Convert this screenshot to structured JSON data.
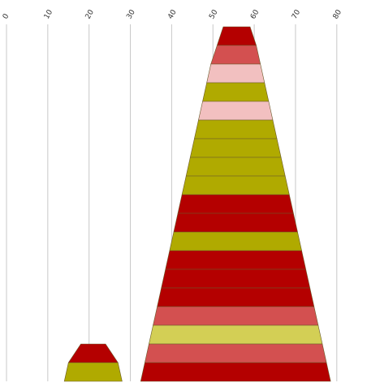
{
  "chart_data": {
    "type": "bar",
    "subtype": "stacked-trapezoid (funnel-like) bands",
    "x_axis": {
      "ticks": [
        0,
        10,
        20,
        30,
        40,
        50,
        60,
        70,
        80
      ],
      "range": [
        0,
        80
      ],
      "position": "top",
      "label_rotation": -60,
      "grid": true
    },
    "colors": {
      "dark_red": "#b40000",
      "red": "#d35050",
      "pink": "#f2c0c0",
      "olive": "#b0aa00",
      "light_olive": "#d3cf55"
    },
    "series": [
      {
        "bands": [
          {
            "x0": 52.5,
            "x1": 59.0,
            "color": "dark_red"
          },
          {
            "x0": 51.0,
            "x1": 60.5,
            "color": "red"
          },
          {
            "x0": 49.5,
            "x1": 61.5,
            "color": "pink"
          },
          {
            "x0": 48.5,
            "x1": 62.5,
            "color": "olive"
          },
          {
            "x0": 47.5,
            "x1": 63.5,
            "color": "pink"
          },
          {
            "x0": 46.5,
            "x1": 64.5,
            "color": "olive"
          },
          {
            "x0": 45.5,
            "x1": 65.5,
            "color": "olive"
          },
          {
            "x0": 44.5,
            "x1": 66.5,
            "color": "olive"
          },
          {
            "x0": 43.5,
            "x1": 67.5,
            "color": "olive"
          },
          {
            "x0": 42.5,
            "x1": 68.5,
            "color": "dark_red"
          },
          {
            "x0": 41.5,
            "x1": 69.5,
            "color": "dark_red"
          },
          {
            "x0": 40.5,
            "x1": 70.5,
            "color": "olive"
          },
          {
            "x0": 39.5,
            "x1": 71.5,
            "color": "dark_red"
          },
          {
            "x0": 38.5,
            "x1": 72.5,
            "color": "dark_red"
          },
          {
            "x0": 37.5,
            "x1": 73.5,
            "color": "dark_red"
          },
          {
            "x0": 36.5,
            "x1": 74.5,
            "color": "red"
          },
          {
            "x0": 35.5,
            "x1": 75.5,
            "color": "light_olive"
          },
          {
            "x0": 34.5,
            "x1": 76.5,
            "color": "red"
          },
          {
            "x0": 33.5,
            "x1": 77.5,
            "color": "dark_red"
          }
        ]
      },
      {
        "bands": [
          {
            "x0": 18.0,
            "x1": 24.0,
            "color": "dark_red"
          },
          {
            "x0": 15.0,
            "x1": 27.0,
            "color": "olive"
          }
        ]
      }
    ]
  }
}
